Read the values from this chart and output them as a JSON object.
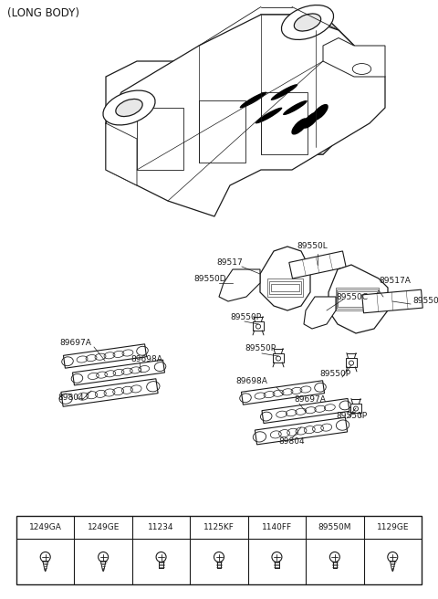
{
  "title": "(LONG BODY)",
  "bg": "#ffffff",
  "tc": "#1a1a1a",
  "figsize": [
    4.8,
    6.56
  ],
  "dpi": 100,
  "fastener_headers": [
    "1249GA",
    "1249GE",
    "11234",
    "1125KF",
    "1140FF",
    "89550M",
    "1129GE"
  ],
  "fastener_styles": [
    "tapping",
    "tapping",
    "hex",
    "hex",
    "hex",
    "hex",
    "tapping"
  ]
}
